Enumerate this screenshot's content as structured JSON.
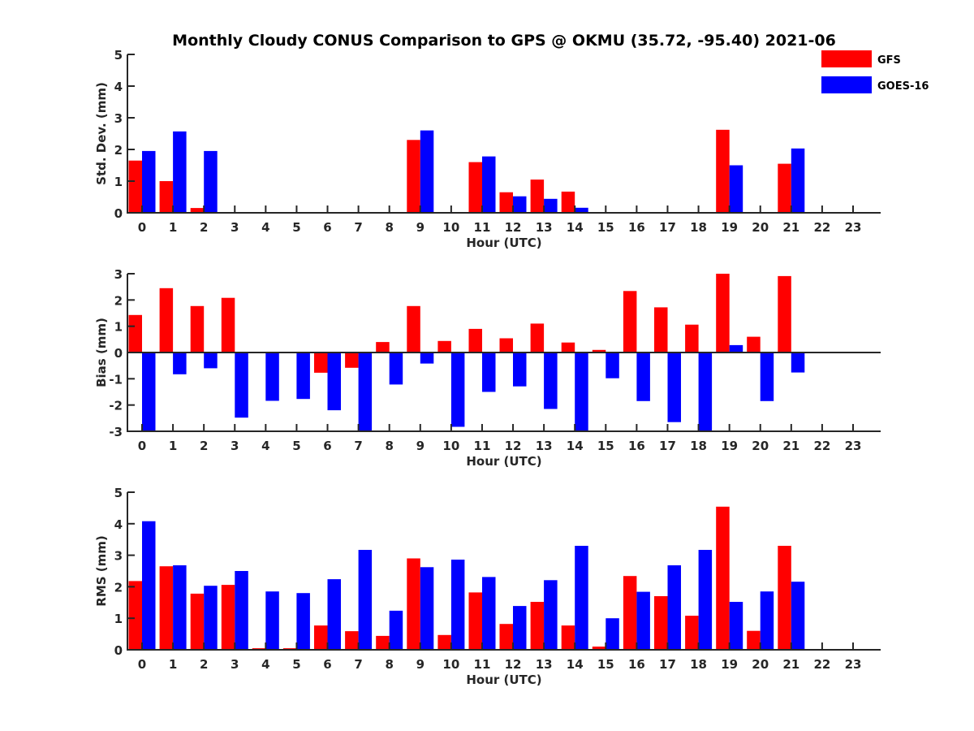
{
  "chart_data": {
    "type": "bar",
    "title": "Monthly Cloudy CONUS Comparison to GPS @ OKMU (35.72, -95.40) 2021-06",
    "legend": {
      "placement": "top-right",
      "entries": [
        {
          "name": "GFS",
          "color": "#ff0000"
        },
        {
          "name": "GOES-16",
          "color": "#0000ff"
        }
      ]
    },
    "categories": [
      "0",
      "1",
      "2",
      "3",
      "4",
      "5",
      "6",
      "7",
      "8",
      "9",
      "10",
      "11",
      "12",
      "13",
      "14",
      "15",
      "16",
      "17",
      "18",
      "19",
      "20",
      "21",
      "22",
      "23"
    ],
    "panels": [
      {
        "id": "stddev",
        "ylabel": "Std. Dev. (mm)",
        "xlabel": "Hour (UTC)",
        "ylim": [
          0,
          5
        ],
        "yticks": [
          0,
          1,
          2,
          3,
          4,
          5
        ],
        "zero_line": false,
        "series": [
          {
            "name": "GFS",
            "values": [
              1.65,
              1.0,
              0.15,
              0,
              0,
              0,
              0,
              0,
              0,
              2.3,
              0,
              1.6,
              0.65,
              1.05,
              0.67,
              0,
              0,
              0,
              0,
              2.62,
              0,
              1.55,
              0,
              0
            ]
          },
          {
            "name": "GOES-16",
            "values": [
              1.95,
              2.57,
              1.95,
              0,
              0,
              0,
              0,
              0,
              0,
              2.6,
              0,
              1.78,
              0.52,
              0.44,
              0.16,
              0,
              0,
              0,
              0,
              1.5,
              0,
              2.03,
              0,
              0
            ]
          }
        ]
      },
      {
        "id": "bias",
        "ylabel": "Bias (mm)",
        "xlabel": "Hour (UTC)",
        "ylim": [
          -3,
          3
        ],
        "yticks": [
          -3,
          -2,
          -1,
          0,
          1,
          2,
          3
        ],
        "zero_line": true,
        "series": [
          {
            "name": "GFS",
            "values": [
              1.43,
              2.45,
              1.77,
              2.08,
              0.02,
              -0.02,
              -0.77,
              -0.58,
              0.4,
              1.77,
              0.44,
              0.9,
              0.54,
              1.1,
              0.38,
              0.1,
              2.34,
              1.72,
              1.06,
              3.0,
              0.6,
              2.91,
              0,
              0
            ]
          },
          {
            "name": "GOES-16",
            "values": [
              -3.0,
              -0.83,
              -0.6,
              -2.48,
              -1.84,
              -1.77,
              -2.2,
              -3.0,
              -1.22,
              -0.42,
              -2.83,
              -1.5,
              -1.29,
              -2.15,
              -3.0,
              -0.98,
              -1.85,
              -2.65,
              -3.0,
              0.28,
              -1.85,
              -0.76,
              0,
              0
            ]
          }
        ]
      },
      {
        "id": "rms",
        "ylabel": "RMS (mm)",
        "xlabel": "Hour (UTC)",
        "ylim": [
          0,
          5
        ],
        "yticks": [
          0,
          1,
          2,
          3,
          4,
          5
        ],
        "zero_line": false,
        "series": [
          {
            "name": "GFS",
            "values": [
              2.18,
              2.65,
              1.78,
              2.06,
              0.05,
              0.05,
              0.77,
              0.59,
              0.44,
              2.9,
              0.47,
              1.82,
              0.82,
              1.52,
              0.77,
              0.1,
              2.34,
              1.7,
              1.08,
              4.54,
              0.6,
              3.3,
              0,
              0
            ]
          },
          {
            "name": "GOES-16",
            "values": [
              4.08,
              2.68,
              2.03,
              2.5,
              1.85,
              1.8,
              2.24,
              3.17,
              1.24,
              2.62,
              2.86,
              2.31,
              1.39,
              2.21,
              3.3,
              1.0,
              1.84,
              2.68,
              3.17,
              1.52,
              1.85,
              2.16,
              0,
              0
            ]
          }
        ]
      }
    ]
  }
}
